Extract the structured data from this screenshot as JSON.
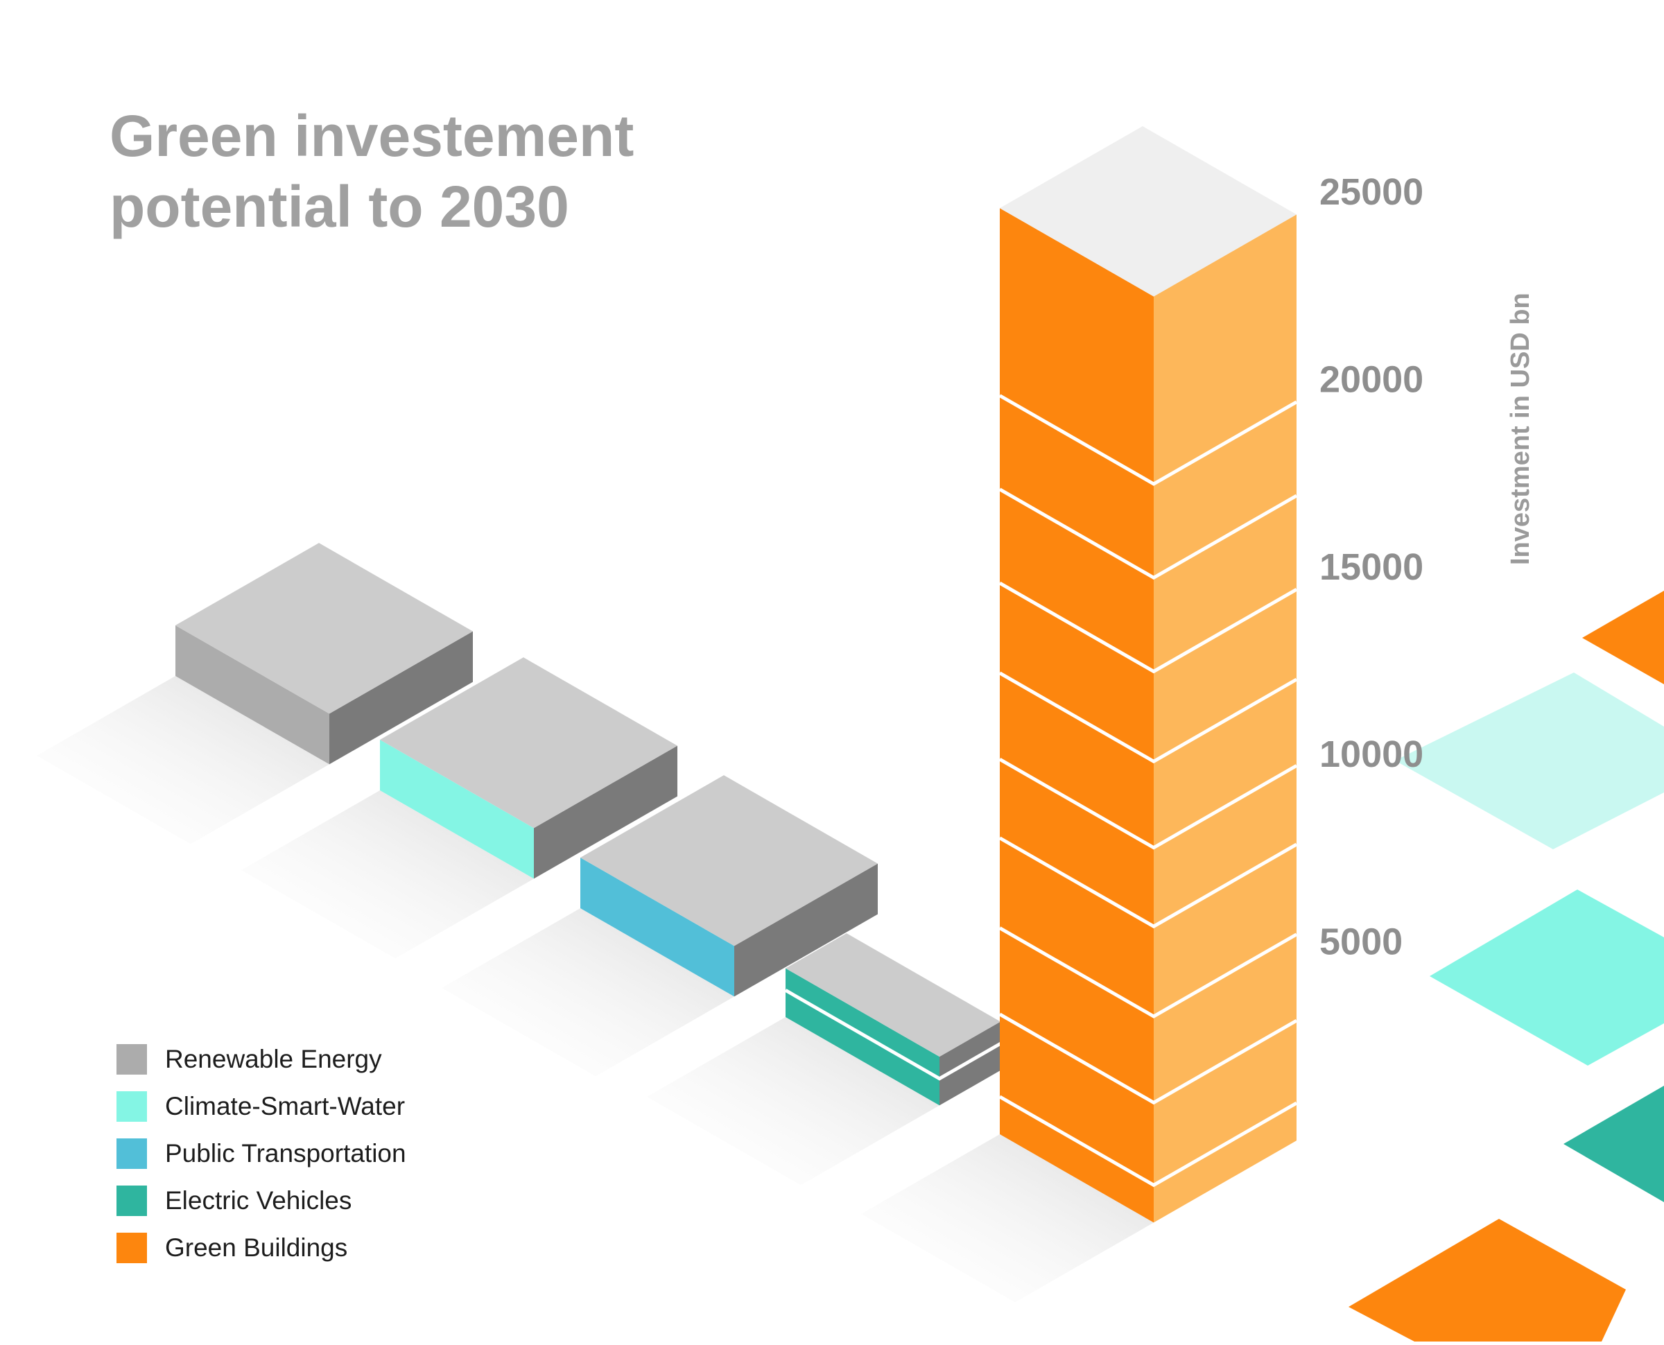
{
  "chart_data": {
    "type": "bar",
    "title": "Green investement potential to 2030",
    "title_lines": [
      "Green investement",
      "potential to 2030"
    ],
    "ylabel": "Investment in USD bn",
    "ylim": [
      0,
      25000
    ],
    "yticks": [
      {
        "value": 25000,
        "label": "25000"
      },
      {
        "value": 20000,
        "label": "20000"
      },
      {
        "value": 15000,
        "label": "15000"
      },
      {
        "value": 10000,
        "label": "10000"
      },
      {
        "value": 5000,
        "label": "5000"
      }
    ],
    "categories": [
      "Renewable Energy",
      "Climate-Smart-Water",
      "Public Transportation",
      "Electric Vehicles",
      "Green Buildings"
    ],
    "values": [
      1350,
      1350,
      1350,
      1300,
      24700
    ],
    "colors": {
      "Renewable Energy": "#acacac",
      "Climate-Smart-Water": "#84f5e4",
      "Public Transportation": "#52bfd8",
      "Electric Vehicles": "#2fb59f",
      "Green Buildings": "#fd860e"
    },
    "legend": [
      {
        "label": "Renewable Energy",
        "color": "#acacac"
      },
      {
        "label": "Climate-Smart-Water",
        "color": "#84f5e4"
      },
      {
        "label": "Public Transportation",
        "color": "#52bfd8"
      },
      {
        "label": "Electric Vehicles",
        "color": "#2fb59f"
      },
      {
        "label": "Green Buildings",
        "color": "#fd860e"
      }
    ],
    "legend_position": "bottom-left",
    "grid": false
  }
}
